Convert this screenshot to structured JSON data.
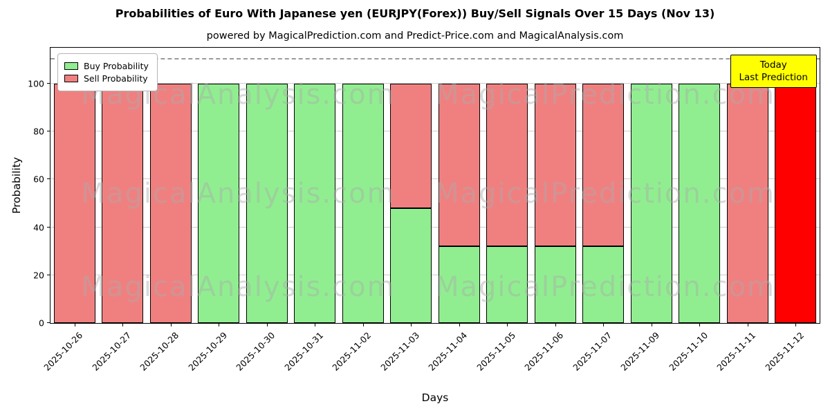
{
  "chart_data": {
    "type": "bar",
    "title": "Probabilities of Euro With Japanese yen (EURJPY(Forex)) Buy/Sell Signals Over 15 Days (Nov 13)",
    "subtitle": "powered by MagicalPrediction.com and Predict-Price.com and MagicalAnalysis.com",
    "xlabel": "Days",
    "ylabel": "Probability",
    "ylim": [
      0,
      115
    ],
    "yticks": [
      0,
      20,
      40,
      60,
      80,
      100
    ],
    "dashed_line_y": 110,
    "grid": "horizontal",
    "legend_position": "upper left",
    "categories": [
      "2025-10-26",
      "2025-10-27",
      "2025-10-28",
      "2025-10-29",
      "2025-10-30",
      "2025-10-31",
      "2025-11-02",
      "2025-11-03",
      "2025-11-04",
      "2025-11-05",
      "2025-11-06",
      "2025-11-07",
      "2025-11-09",
      "2025-11-10",
      "2025-11-11",
      "2025-11-12"
    ],
    "series": [
      {
        "name": "Buy Probability",
        "values": [
          0,
          0,
          0,
          100,
          100,
          100,
          100,
          48,
          32,
          32,
          32,
          32,
          100,
          100,
          0,
          0
        ]
      },
      {
        "name": "Sell Probability",
        "values": [
          100,
          100,
          100,
          0,
          0,
          0,
          0,
          52,
          68,
          68,
          68,
          68,
          0,
          0,
          100,
          100
        ]
      }
    ],
    "colors": {
      "buy": "#90ee90",
      "sell": "#f08080",
      "last_bar": "#ff0000",
      "edge": "#000000"
    }
  },
  "legend": {
    "items": [
      {
        "label": "Buy Probability",
        "color": "#90ee90"
      },
      {
        "label": "Sell Probability",
        "color": "#f08080"
      }
    ]
  },
  "annotation": {
    "line1": "Today",
    "line2": "Last Prediction",
    "background": "#ffff00"
  },
  "watermarks": {
    "left": "MagicalAnalysis.com",
    "right": "MagicalPrediction.com"
  }
}
